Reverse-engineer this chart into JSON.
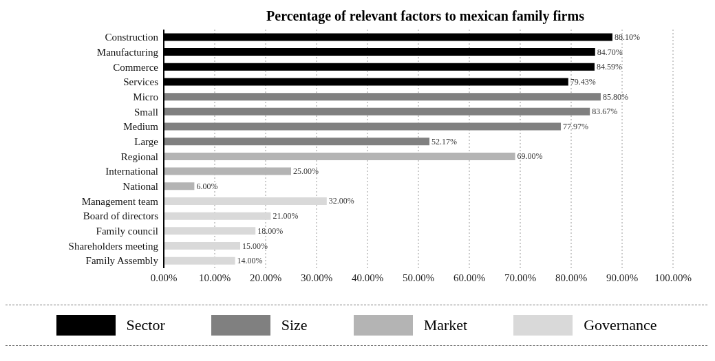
{
  "chart_data": {
    "type": "bar",
    "orientation": "horizontal",
    "title": "Percentage of relevant factors to mexican family firms",
    "categories": [
      "Construction",
      "Manufacturing",
      "Commerce",
      "Services",
      "Micro",
      "Small",
      "Medium",
      "Large",
      "Regional",
      "International",
      "National",
      "Management team",
      "Board of directors",
      "Family council",
      "Shareholders meeting",
      "Family Assembly"
    ],
    "series": [
      {
        "name": "Sector",
        "color": "#000000",
        "values": [
          88.1,
          84.7,
          84.59,
          79.43,
          null,
          null,
          null,
          null,
          null,
          null,
          null,
          null,
          null,
          null,
          null,
          null
        ],
        "value_labels": [
          "88.10%",
          "84.70%",
          "84.59%",
          "79.43%",
          null,
          null,
          null,
          null,
          null,
          null,
          null,
          null,
          null,
          null,
          null,
          null
        ]
      },
      {
        "name": "Size",
        "color": "#808080",
        "values": [
          null,
          null,
          null,
          null,
          85.8,
          83.67,
          77.97,
          52.17,
          null,
          null,
          null,
          null,
          null,
          null,
          null,
          null
        ],
        "value_labels": [
          null,
          null,
          null,
          null,
          "85.80%",
          "83.67%",
          "77.97%",
          "52.17%",
          null,
          null,
          null,
          null,
          null,
          null,
          null,
          null
        ]
      },
      {
        "name": "Market",
        "color": "#b4b4b4",
        "values": [
          null,
          null,
          null,
          null,
          null,
          null,
          null,
          null,
          69,
          25,
          6,
          null,
          null,
          null,
          null,
          null
        ],
        "value_labels": [
          null,
          null,
          null,
          null,
          null,
          null,
          null,
          null,
          "69.00%",
          "25.00%",
          "6.00%",
          null,
          null,
          null,
          null,
          null
        ]
      },
      {
        "name": "Governance",
        "color": "#d9d9d9",
        "values": [
          null,
          null,
          null,
          null,
          null,
          null,
          null,
          null,
          null,
          null,
          null,
          32,
          21,
          18,
          15,
          14
        ],
        "value_labels": [
          null,
          null,
          null,
          null,
          null,
          null,
          null,
          null,
          null,
          null,
          null,
          "32.00%",
          "21.00%",
          "18.00%",
          "15.00%",
          "14.00%"
        ]
      }
    ],
    "xlim": [
      0,
      100
    ],
    "xticks": [
      {
        "value": 0,
        "label": "0.00%"
      },
      {
        "value": 10,
        "label": "10.00%"
      },
      {
        "value": 20,
        "label": "20.00%"
      },
      {
        "value": 30,
        "label": "30.00%"
      },
      {
        "value": 40,
        "label": "40.00%"
      },
      {
        "value": 50,
        "label": "50.00%"
      },
      {
        "value": 60,
        "label": "60.00%"
      },
      {
        "value": 70,
        "label": "70.00%"
      },
      {
        "value": 80,
        "label": "80.00%"
      },
      {
        "value": 90,
        "label": "90.00%"
      },
      {
        "value": 100,
        "label": "100.00%"
      }
    ],
    "grid": "x",
    "legend": "bottom"
  }
}
